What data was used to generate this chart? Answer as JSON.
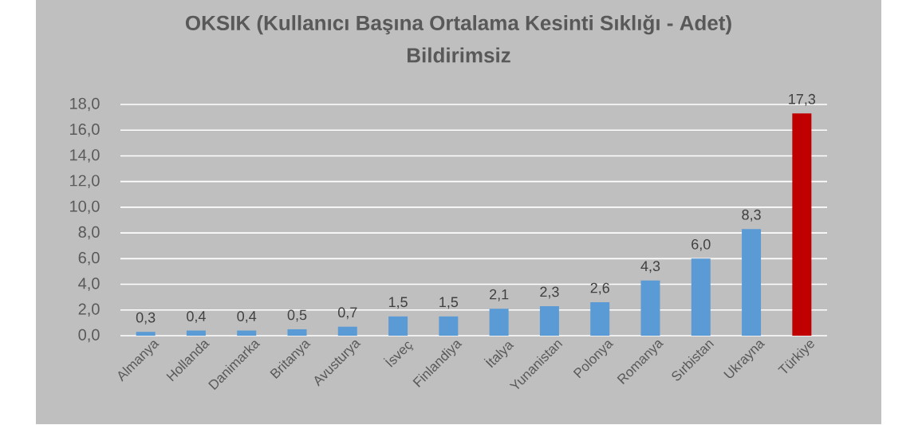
{
  "chart_data": {
    "type": "bar",
    "title": "OKSIK (Kullanıcı Başına Ortalama Kesinti Sıklığı - Adet)",
    "subtitle": "Bildirimsiz",
    "categories": [
      "Almanya",
      "Hollanda",
      "Danimarka",
      "Britanya",
      "Avusturya",
      "İsveç",
      "Finlandiya",
      "İtalya",
      "Yunanistan",
      "Polonya",
      "Romanya",
      "Sırbistan",
      "Ukrayna",
      "Türkiye"
    ],
    "values": [
      0.3,
      0.4,
      0.4,
      0.5,
      0.7,
      1.5,
      1.5,
      2.1,
      2.3,
      2.6,
      4.3,
      6.0,
      8.3,
      17.3
    ],
    "colors": [
      "#5b9bd5",
      "#5b9bd5",
      "#5b9bd5",
      "#5b9bd5",
      "#5b9bd5",
      "#5b9bd5",
      "#5b9bd5",
      "#5b9bd5",
      "#5b9bd5",
      "#5b9bd5",
      "#5b9bd5",
      "#5b9bd5",
      "#5b9bd5",
      "#c00000"
    ],
    "value_labels": [
      "0,3",
      "0,4",
      "0,4",
      "0,5",
      "0,7",
      "1,5",
      "1,5",
      "2,1",
      "2,3",
      "2,6",
      "4,3",
      "6,0",
      "8,3",
      "17,3"
    ],
    "ylim": [
      0,
      18
    ],
    "yticks": [
      {
        "value": 0,
        "label": "0,0"
      },
      {
        "value": 2,
        "label": "2,0"
      },
      {
        "value": 4,
        "label": "4,0"
      },
      {
        "value": 6,
        "label": "6,0"
      },
      {
        "value": 8,
        "label": "8,0"
      },
      {
        "value": 10,
        "label": "10,0"
      },
      {
        "value": 12,
        "label": "12,0"
      },
      {
        "value": 14,
        "label": "14,0"
      },
      {
        "value": 16,
        "label": "16,0"
      },
      {
        "value": 18,
        "label": "18,0"
      }
    ],
    "grid": "y"
  }
}
